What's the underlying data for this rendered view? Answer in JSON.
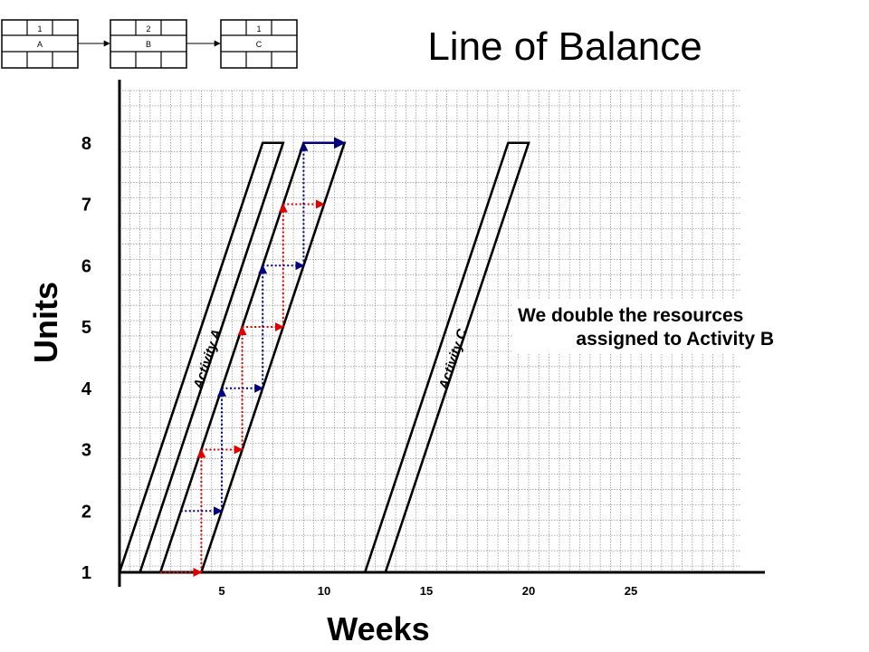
{
  "chart_data": {
    "type": "line",
    "title": "Line of Balance",
    "xlabel": "Weeks",
    "ylabel": "Units",
    "xlim": [
      0,
      31
    ],
    "ylim": [
      1,
      8.8
    ],
    "grid": true,
    "x_ticks": [
      5,
      10,
      15,
      20,
      25
    ],
    "y_ticks": [
      1,
      2,
      3,
      4,
      5,
      6,
      7,
      8
    ],
    "series": [
      {
        "name": "Activity A",
        "color": "#000000",
        "band": [
          [
            [
              0,
              1
            ],
            [
              7,
              8
            ]
          ],
          [
            [
              1,
              1
            ],
            [
              8,
              8
            ]
          ]
        ],
        "label_at": [
          4.5,
          4.45
        ]
      },
      {
        "name": "",
        "color": "#000000",
        "band": [
          [
            [
              2,
              1
            ],
            [
              9,
              8
            ]
          ],
          [
            [
              4,
              1
            ],
            [
              11,
              8
            ]
          ]
        ]
      },
      {
        "name": "Activity C",
        "color": "#000000",
        "band": [
          [
            [
              12,
              1
            ],
            [
              19,
              8
            ]
          ],
          [
            [
              13,
              1
            ],
            [
              20,
              8
            ]
          ]
        ],
        "label_at": [
          16.5,
          4.45
        ]
      }
    ],
    "resource_moves": {
      "red": {
        "color": "#e00000",
        "points": [
          [
            2,
            1
          ],
          [
            4,
            1
          ],
          [
            4,
            3
          ],
          [
            6,
            3
          ],
          [
            6,
            5
          ],
          [
            8,
            5
          ],
          [
            8,
            7
          ],
          [
            10,
            7
          ]
        ]
      },
      "blue": {
        "color": "#000080",
        "points": [
          [
            3,
            2
          ],
          [
            5,
            2
          ],
          [
            5,
            4
          ],
          [
            7,
            4
          ],
          [
            7,
            6
          ],
          [
            9,
            6
          ],
          [
            9,
            8
          ],
          [
            11,
            8
          ]
        ]
      }
    },
    "annotation": [
      "We double the resources",
      "assigned to Activity B"
    ]
  },
  "network": {
    "nodes": [
      {
        "duration": "1",
        "name": "A"
      },
      {
        "duration": "2",
        "name": "B"
      },
      {
        "duration": "1",
        "name": "C"
      }
    ]
  }
}
